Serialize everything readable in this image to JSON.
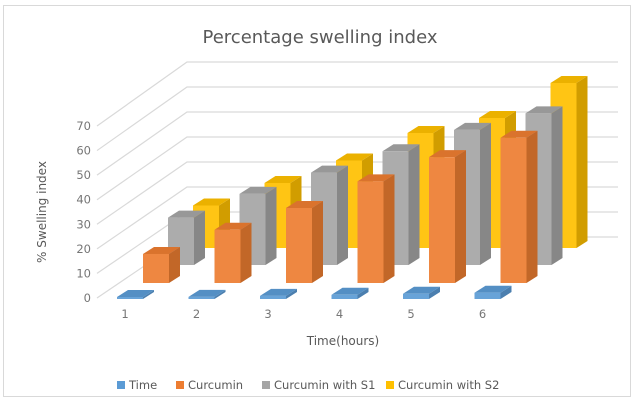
{
  "chart_data": {
    "type": "bar",
    "variant": "3d-column",
    "title": "Percentage swelling index",
    "xlabel": "Time(hours)",
    "ylabel": "% Swelling index",
    "categories": [
      "1",
      "2",
      "3",
      "4",
      "5",
      "6"
    ],
    "y_ticks": [
      "0",
      "10",
      "20",
      "30",
      "40",
      "50",
      "60",
      "70"
    ],
    "ylim": [
      0,
      70
    ],
    "grid": true,
    "legend_position": "bottom",
    "series": [
      {
        "name": "Time",
        "color": "#5b9bd5",
        "values": [
          1,
          2,
          3,
          4,
          5,
          6
        ]
      },
      {
        "name": "Curcumin",
        "color": "#ed7d31",
        "values": [
          12,
          22,
          31,
          42,
          52,
          60
        ]
      },
      {
        "name": "Curcumin with S1",
        "color": "#a5a5a5",
        "values": [
          20,
          30,
          39,
          48,
          57,
          64
        ]
      },
      {
        "name": "Curcumin with S2",
        "color": "#ffc000",
        "values": [
          17,
          26,
          35,
          46,
          52,
          66
        ]
      }
    ]
  }
}
